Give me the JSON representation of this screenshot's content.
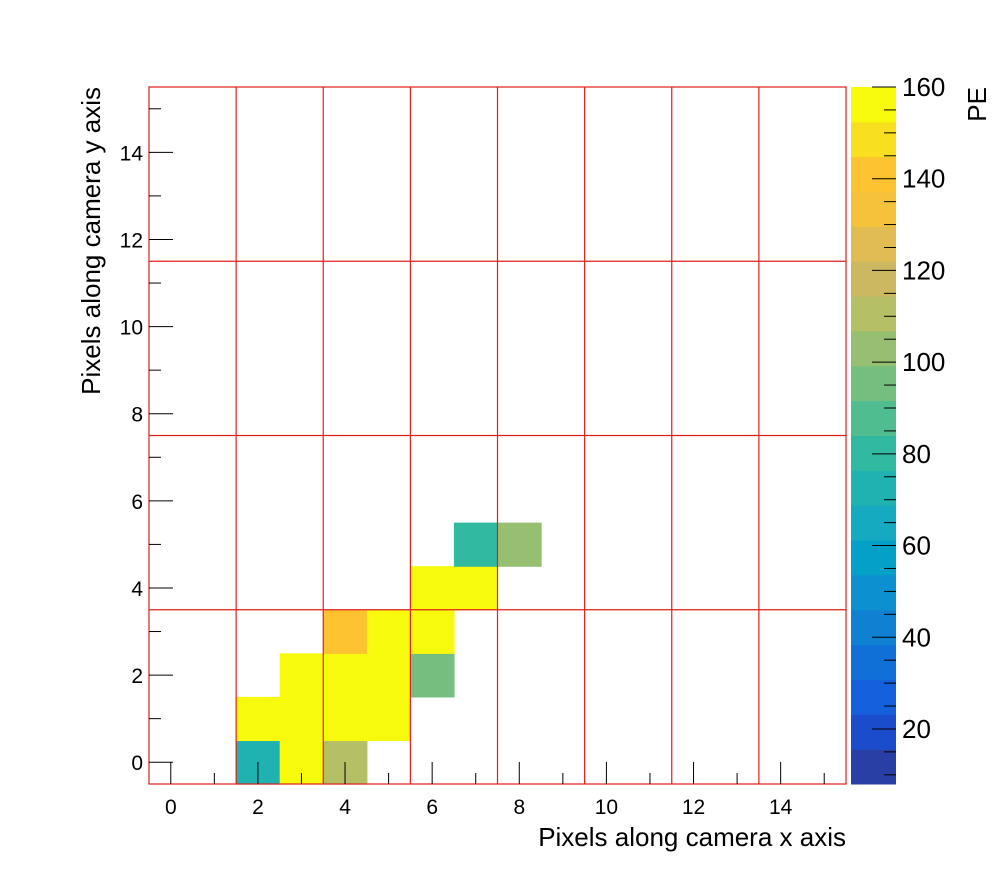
{
  "chart_data": {
    "type": "heatmap",
    "xlabel": "Pixels along camera x axis",
    "ylabel": "Pixels along camera y axis",
    "xlim": [
      -0.5,
      15.5
    ],
    "ylim": [
      -0.5,
      15.5
    ],
    "x_ticks": [
      "0",
      "2",
      "4",
      "6",
      "8",
      "10",
      "12",
      "14"
    ],
    "y_ticks": [
      "0",
      "2",
      "4",
      "6",
      "8",
      "10",
      "12",
      "14"
    ],
    "grid_x_boundaries": [
      1.5,
      3.5,
      5.5,
      7.5,
      9.5,
      11.5,
      13.5
    ],
    "grid_y_boundaries": [
      3.5,
      7.5,
      11.5
    ],
    "grid_color": "#e0201c",
    "colorbar": {
      "label": "PE",
      "min": 8,
      "max": 160,
      "ticks": [
        "20",
        "40",
        "60",
        "80",
        "100",
        "120",
        "140",
        "160"
      ],
      "colors": [
        "#2a3fa6",
        "#1b4ccc",
        "#1460dc",
        "#1070d8",
        "#0f80d2",
        "#0d90d0",
        "#05a0c8",
        "#16aac0",
        "#1fb2b0",
        "#30b8a0",
        "#50bd90",
        "#74bf80",
        "#96bf72",
        "#b4bf66",
        "#ccb860",
        "#e0bc52",
        "#f5c23a",
        "#fcc230",
        "#f8e020",
        "#f8fa0d"
      ]
    },
    "points": [
      {
        "x": 2,
        "y": 0,
        "value": 75
      },
      {
        "x": 3,
        "y": 0,
        "value": 160
      },
      {
        "x": 4,
        "y": 0,
        "value": 112
      },
      {
        "x": 2,
        "y": 1,
        "value": 160
      },
      {
        "x": 3,
        "y": 1,
        "value": 160
      },
      {
        "x": 4,
        "y": 1,
        "value": 160
      },
      {
        "x": 5,
        "y": 1,
        "value": 160
      },
      {
        "x": 3,
        "y": 2,
        "value": 160
      },
      {
        "x": 4,
        "y": 2,
        "value": 160
      },
      {
        "x": 5,
        "y": 2,
        "value": 160
      },
      {
        "x": 6,
        "y": 2,
        "value": 98
      },
      {
        "x": 4,
        "y": 3,
        "value": 140
      },
      {
        "x": 5,
        "y": 3,
        "value": 160
      },
      {
        "x": 6,
        "y": 3,
        "value": 160
      },
      {
        "x": 6,
        "y": 4,
        "value": 160
      },
      {
        "x": 7,
        "y": 4,
        "value": 160
      },
      {
        "x": 7,
        "y": 5,
        "value": 82
      },
      {
        "x": 8,
        "y": 5,
        "value": 106
      }
    ]
  }
}
